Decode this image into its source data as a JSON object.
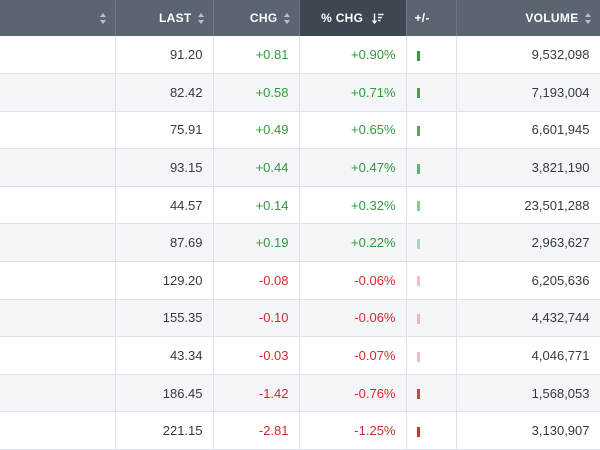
{
  "header": {
    "last_label": "LAST",
    "chg_label": "CHG",
    "pct_chg_label": "% CHG",
    "bar_label": "+/-",
    "volume_label": "VOLUME"
  },
  "colors": {
    "positive": "#2e9a3a",
    "negative": "#d12b2b"
  },
  "rows": [
    {
      "last": "91.20",
      "chg": "+0.81",
      "pct": "+0.90%",
      "volume": "9,532,098",
      "dir": "pos",
      "bar_opacity": 1.0
    },
    {
      "last": "82.42",
      "chg": "+0.58",
      "pct": "+0.71%",
      "volume": "7,193,004",
      "dir": "pos",
      "bar_opacity": 0.9
    },
    {
      "last": "75.91",
      "chg": "+0.49",
      "pct": "+0.65%",
      "volume": "6,601,945",
      "dir": "pos",
      "bar_opacity": 0.85
    },
    {
      "last": "93.15",
      "chg": "+0.44",
      "pct": "+0.47%",
      "volume": "3,821,190",
      "dir": "pos",
      "bar_opacity": 0.75
    },
    {
      "last": "44.57",
      "chg": "+0.14",
      "pct": "+0.32%",
      "volume": "23,501,288",
      "dir": "pos",
      "bar_opacity": 0.55
    },
    {
      "last": "87.69",
      "chg": "+0.19",
      "pct": "+0.22%",
      "volume": "2,963,627",
      "dir": "pos",
      "bar_opacity": 0.35
    },
    {
      "last": "129.20",
      "chg": "-0.08",
      "pct": "-0.06%",
      "volume": "6,205,636",
      "dir": "neg",
      "bar_opacity": 0.3
    },
    {
      "last": "155.35",
      "chg": "-0.10",
      "pct": "-0.06%",
      "volume": "4,432,744",
      "dir": "neg",
      "bar_opacity": 0.3
    },
    {
      "last": "43.34",
      "chg": "-0.03",
      "pct": "-0.07%",
      "volume": "4,046,771",
      "dir": "neg",
      "bar_opacity": 0.32
    },
    {
      "last": "186.45",
      "chg": "-1.42",
      "pct": "-0.76%",
      "volume": "1,568,053",
      "dir": "neg",
      "bar_opacity": 0.9
    },
    {
      "last": "221.15",
      "chg": "-2.81",
      "pct": "-1.25%",
      "volume": "3,130,907",
      "dir": "neg",
      "bar_opacity": 1.0
    }
  ]
}
